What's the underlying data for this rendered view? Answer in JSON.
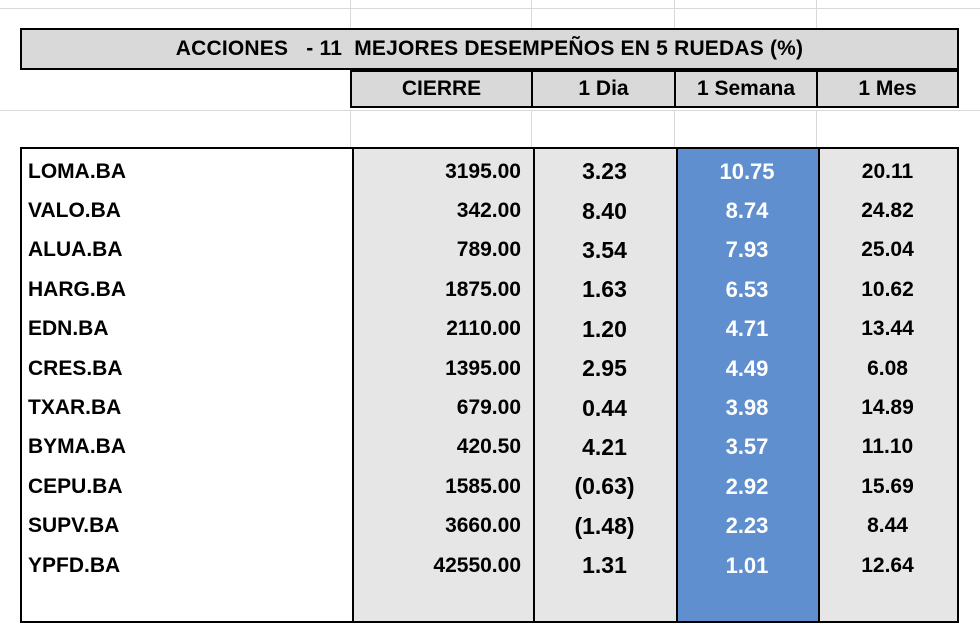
{
  "title": "ACCIONES   - 11  MEJORES DESEMPEÑOS EN 5 RUEDAS (%)",
  "headers": [
    "CIERRE",
    "1 Dia",
    "1 Semana",
    "1 Mes"
  ],
  "colors": {
    "header_bg": "#d9d9d9",
    "cell_bg": "#e6e6e6",
    "highlight_bg": "#5f8fce"
  },
  "rows": [
    {
      "ticker": "LOMA.BA",
      "cierre": "3195.00",
      "dia": "3.23",
      "semana": "10.75",
      "mes": "20.11"
    },
    {
      "ticker": "VALO.BA",
      "cierre": "342.00",
      "dia": "8.40",
      "semana": "8.74",
      "mes": "24.82"
    },
    {
      "ticker": "ALUA.BA",
      "cierre": "789.00",
      "dia": "3.54",
      "semana": "7.93",
      "mes": "25.04"
    },
    {
      "ticker": "HARG.BA",
      "cierre": "1875.00",
      "dia": "1.63",
      "semana": "6.53",
      "mes": "10.62"
    },
    {
      "ticker": "EDN.BA",
      "cierre": "2110.00",
      "dia": "1.20",
      "semana": "4.71",
      "mes": "13.44"
    },
    {
      "ticker": "CRES.BA",
      "cierre": "1395.00",
      "dia": "2.95",
      "semana": "4.49",
      "mes": "6.08"
    },
    {
      "ticker": "TXAR.BA",
      "cierre": "679.00",
      "dia": "0.44",
      "semana": "3.98",
      "mes": "14.89"
    },
    {
      "ticker": "BYMA.BA",
      "cierre": "420.50",
      "dia": "4.21",
      "semana": "3.57",
      "mes": "11.10"
    },
    {
      "ticker": "CEPU.BA",
      "cierre": "1585.00",
      "dia": "(0.63)",
      "semana": "2.92",
      "mes": "15.69"
    },
    {
      "ticker": "SUPV.BA",
      "cierre": "3660.00",
      "dia": "(1.48)",
      "semana": "2.23",
      "mes": "8.44"
    },
    {
      "ticker": "YPFD.BA",
      "cierre": "42550.00",
      "dia": "1.31",
      "semana": "1.01",
      "mes": "12.64"
    }
  ]
}
